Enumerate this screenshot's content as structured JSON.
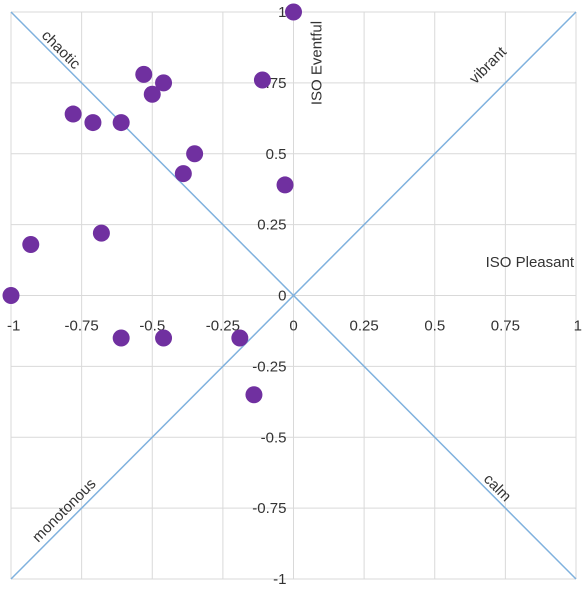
{
  "chart_data": {
    "type": "scatter",
    "xlim": [
      -1,
      1
    ],
    "ylim": [
      -1,
      1
    ],
    "grid": true,
    "x_ticks": [
      -1,
      -0.75,
      -0.5,
      -0.25,
      0,
      0.25,
      0.5,
      0.75,
      1
    ],
    "y_ticks": [
      -1,
      -0.75,
      -0.5,
      -0.25,
      0,
      0.25,
      0.5,
      0.75,
      1
    ],
    "x_tick_labels": [
      "-1",
      "-0.75",
      "-0.5",
      "-0.25",
      "0",
      "0.25",
      "0.5",
      "0.75",
      "1"
    ],
    "y_tick_labels": [
      "-1",
      "-0.75",
      "-0.5",
      "-0.25",
      "0",
      "0.25",
      "0.5",
      "0.75",
      "1"
    ],
    "xlabel": "ISO Pleasant",
    "ylabel": "ISO Eventful",
    "diagonal_labels": {
      "upper_left": "chaotic",
      "upper_right": "vibrant",
      "lower_left": "monotonous",
      "lower_right": "calm"
    },
    "colors": {
      "points": "#7030a0",
      "grid": "#d9d9d9",
      "diagonals": "#7fb1de",
      "text": "#333333"
    },
    "points": [
      {
        "x": 0.0,
        "y": 1.0
      },
      {
        "x": -0.53,
        "y": 0.78
      },
      {
        "x": -0.46,
        "y": 0.75
      },
      {
        "x": -0.11,
        "y": 0.76
      },
      {
        "x": -0.5,
        "y": 0.71
      },
      {
        "x": -0.78,
        "y": 0.64
      },
      {
        "x": -0.71,
        "y": 0.61
      },
      {
        "x": -0.61,
        "y": 0.61
      },
      {
        "x": -0.35,
        "y": 0.5
      },
      {
        "x": -0.39,
        "y": 0.43
      },
      {
        "x": -0.03,
        "y": 0.39
      },
      {
        "x": -0.93,
        "y": 0.18
      },
      {
        "x": -0.68,
        "y": 0.22
      },
      {
        "x": -1.0,
        "y": 0.0
      },
      {
        "x": -0.61,
        "y": -0.15
      },
      {
        "x": -0.46,
        "y": -0.15
      },
      {
        "x": -0.19,
        "y": -0.15
      },
      {
        "x": -0.14,
        "y": -0.35
      }
    ]
  }
}
